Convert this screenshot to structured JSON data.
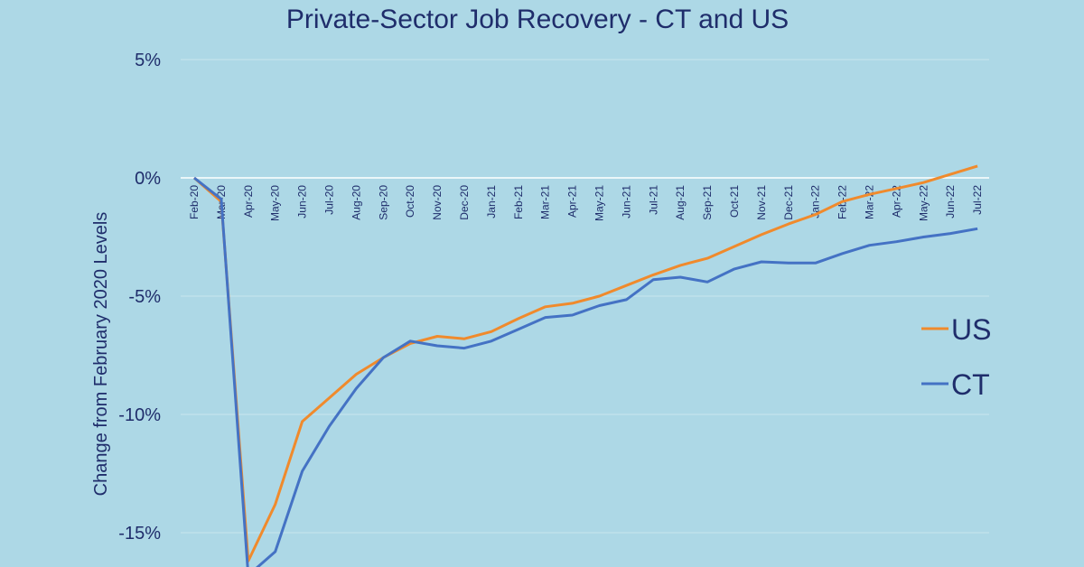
{
  "chart_data": {
    "type": "line",
    "title": "Private-Sector Job Recovery - CT and US",
    "ylabel": "Change from February 2020 Levels",
    "xlabel": "",
    "y_ticks": [
      "5%",
      "0%",
      "-5%",
      "-10%",
      "-15%"
    ],
    "ylim": [
      -16.5,
      5
    ],
    "grid": true,
    "legend_position": "right",
    "categories": [
      "Feb-20",
      "Mar-20",
      "Apr-20",
      "May-20",
      "Jun-20",
      "Jul-20",
      "Aug-20",
      "Sep-20",
      "Oct-20",
      "Nov-20",
      "Dec-20",
      "Jan-21",
      "Feb-21",
      "Mar-21",
      "Apr-21",
      "May-21",
      "Jun-21",
      "Jul-21",
      "Aug-21",
      "Sep-21",
      "Oct-21",
      "Nov-21",
      "Dec-21",
      "Jan-22",
      "Feb-22",
      "Mar-22",
      "Apr-22",
      "May-22",
      "Jun-22",
      "Jul-22"
    ],
    "series": [
      {
        "name": "US",
        "color": "#f08a2c",
        "values": [
          0,
          -1.0,
          -16.2,
          -13.8,
          -10.3,
          -9.3,
          -8.3,
          -7.6,
          -7.0,
          -6.7,
          -6.8,
          -6.5,
          -5.95,
          -5.45,
          -5.3,
          -5.0,
          -4.55,
          -4.1,
          -3.7,
          -3.4,
          -2.9,
          -2.4,
          -1.95,
          -1.55,
          -1.0,
          -0.7,
          -0.45,
          -0.2,
          0.15,
          0.5
        ]
      },
      {
        "name": "CT",
        "color": "#4472c4",
        "values": [
          0,
          -0.9,
          -16.8,
          -15.8,
          -12.4,
          -10.5,
          -8.9,
          -7.6,
          -6.9,
          -7.1,
          -7.2,
          -6.9,
          -6.4,
          -5.9,
          -5.8,
          -5.4,
          -5.15,
          -4.3,
          -4.2,
          -4.4,
          -3.85,
          -3.55,
          -3.6,
          -3.6,
          -3.2,
          -2.85,
          -2.7,
          -2.5,
          -2.35,
          -2.15
        ]
      }
    ]
  }
}
